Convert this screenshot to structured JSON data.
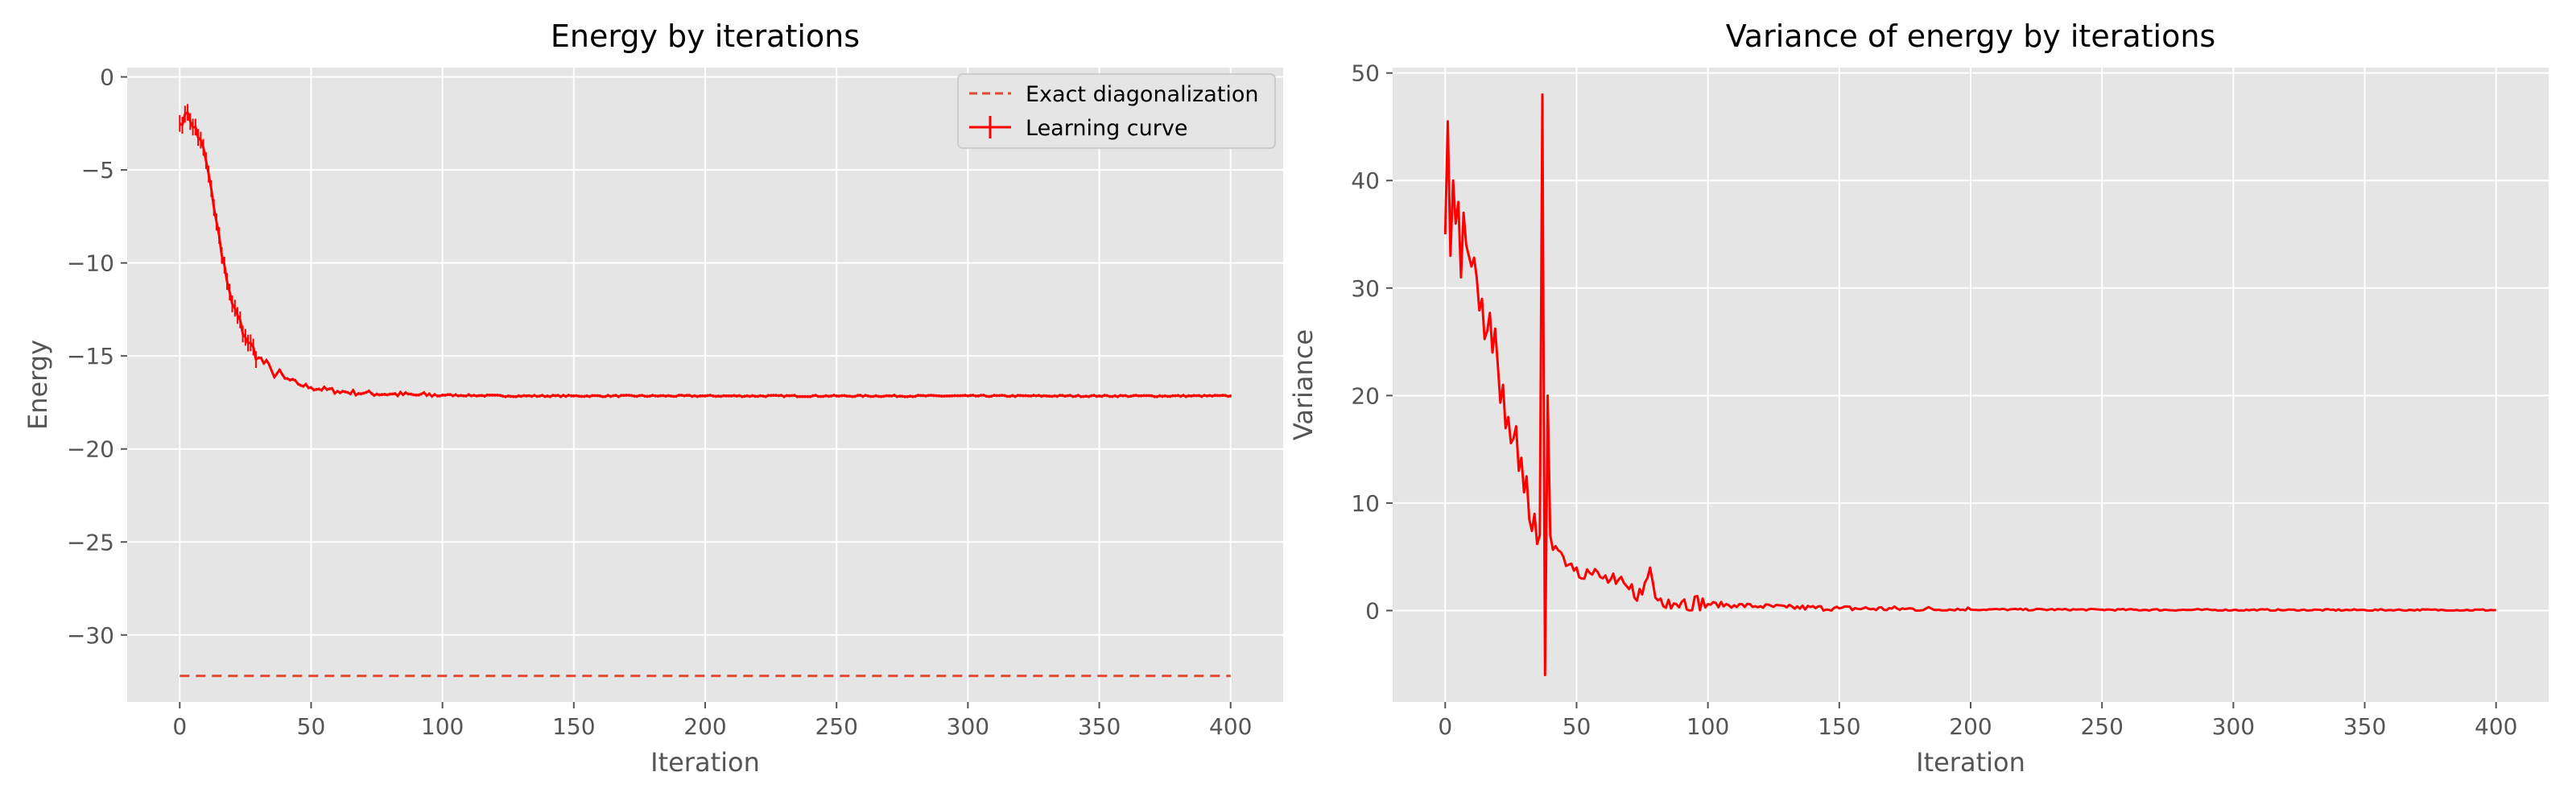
{
  "chart_data": [
    {
      "type": "line",
      "title": "Energy by iterations",
      "xlabel": "Iteration",
      "ylabel": "Energy",
      "xlim": [
        -20,
        420
      ],
      "ylim": [
        -33.6,
        0.5
      ],
      "xticks": [
        0,
        50,
        100,
        150,
        200,
        250,
        300,
        350,
        400
      ],
      "yticks": [
        0,
        -5,
        -10,
        -15,
        -20,
        -25,
        -30
      ],
      "ytick_labels": [
        "0",
        "−5",
        "−10",
        "−15",
        "−20",
        "−25",
        "−30"
      ],
      "grid": true,
      "legend": {
        "position": "top-right",
        "entries": [
          {
            "label": "Exact diagonalization",
            "style": "dashed",
            "color": "#e24a33"
          },
          {
            "label": "Learning curve",
            "style": "solid-errorbar",
            "color": "#ff0000"
          }
        ]
      },
      "series": [
        {
          "name": "Exact diagonalization",
          "x": [
            0,
            400
          ],
          "y": [
            -32.2,
            -32.2
          ]
        },
        {
          "name": "Learning curve",
          "x": [
            0,
            2,
            4,
            6,
            8,
            10,
            12,
            14,
            16,
            18,
            20,
            25,
            30,
            35,
            40,
            45,
            50,
            60,
            70,
            80,
            90,
            100,
            125,
            150,
            200,
            250,
            300,
            350,
            400
          ],
          "y": [
            -2.5,
            -2.0,
            -2.4,
            -2.7,
            -3.4,
            -4.5,
            -6.0,
            -7.8,
            -9.6,
            -11.0,
            -12.2,
            -14.0,
            -15.1,
            -15.8,
            -16.2,
            -16.5,
            -16.7,
            -16.9,
            -17.0,
            -17.05,
            -17.1,
            -17.1,
            -17.15,
            -17.15,
            -17.15,
            -17.15,
            -17.15,
            -17.15,
            -17.15
          ]
        }
      ]
    },
    {
      "type": "line",
      "title": "Variance of energy by iterations",
      "xlabel": "Iteration",
      "ylabel": "Variance",
      "xlim": [
        -20,
        420
      ],
      "ylim": [
        -8.5,
        50.5
      ],
      "xticks": [
        0,
        50,
        100,
        150,
        200,
        250,
        300,
        350,
        400
      ],
      "yticks": [
        0,
        10,
        20,
        30,
        40,
        50
      ],
      "ytick_labels": [
        "0",
        "10",
        "20",
        "30",
        "40",
        "50"
      ],
      "grid": true,
      "series": [
        {
          "name": "Variance",
          "x": [
            0,
            1,
            2,
            3,
            4,
            5,
            6,
            7,
            8,
            9,
            10,
            12,
            14,
            16,
            18,
            20,
            22,
            24,
            26,
            28,
            30,
            32,
            34,
            36,
            37,
            38,
            39,
            40,
            42,
            45,
            50,
            55,
            60,
            65,
            70,
            75,
            78,
            80,
            85,
            90,
            100,
            110,
            120,
            130,
            150,
            175,
            200,
            250,
            300,
            350,
            400
          ],
          "y": [
            35,
            45.5,
            33,
            40,
            36,
            38,
            31,
            37,
            34,
            33,
            32,
            31,
            29,
            26,
            24,
            23,
            21,
            18,
            16,
            13,
            11,
            8.5,
            9,
            7,
            48,
            -6,
            20,
            7,
            6,
            5,
            4,
            3.5,
            3,
            2.5,
            2,
            1.5,
            4,
            1.2,
            1,
            0.8,
            0.6,
            0.5,
            0.4,
            0.3,
            0.2,
            0.15,
            0.1,
            0.08,
            0.05,
            0.05,
            0.05
          ]
        }
      ]
    }
  ]
}
